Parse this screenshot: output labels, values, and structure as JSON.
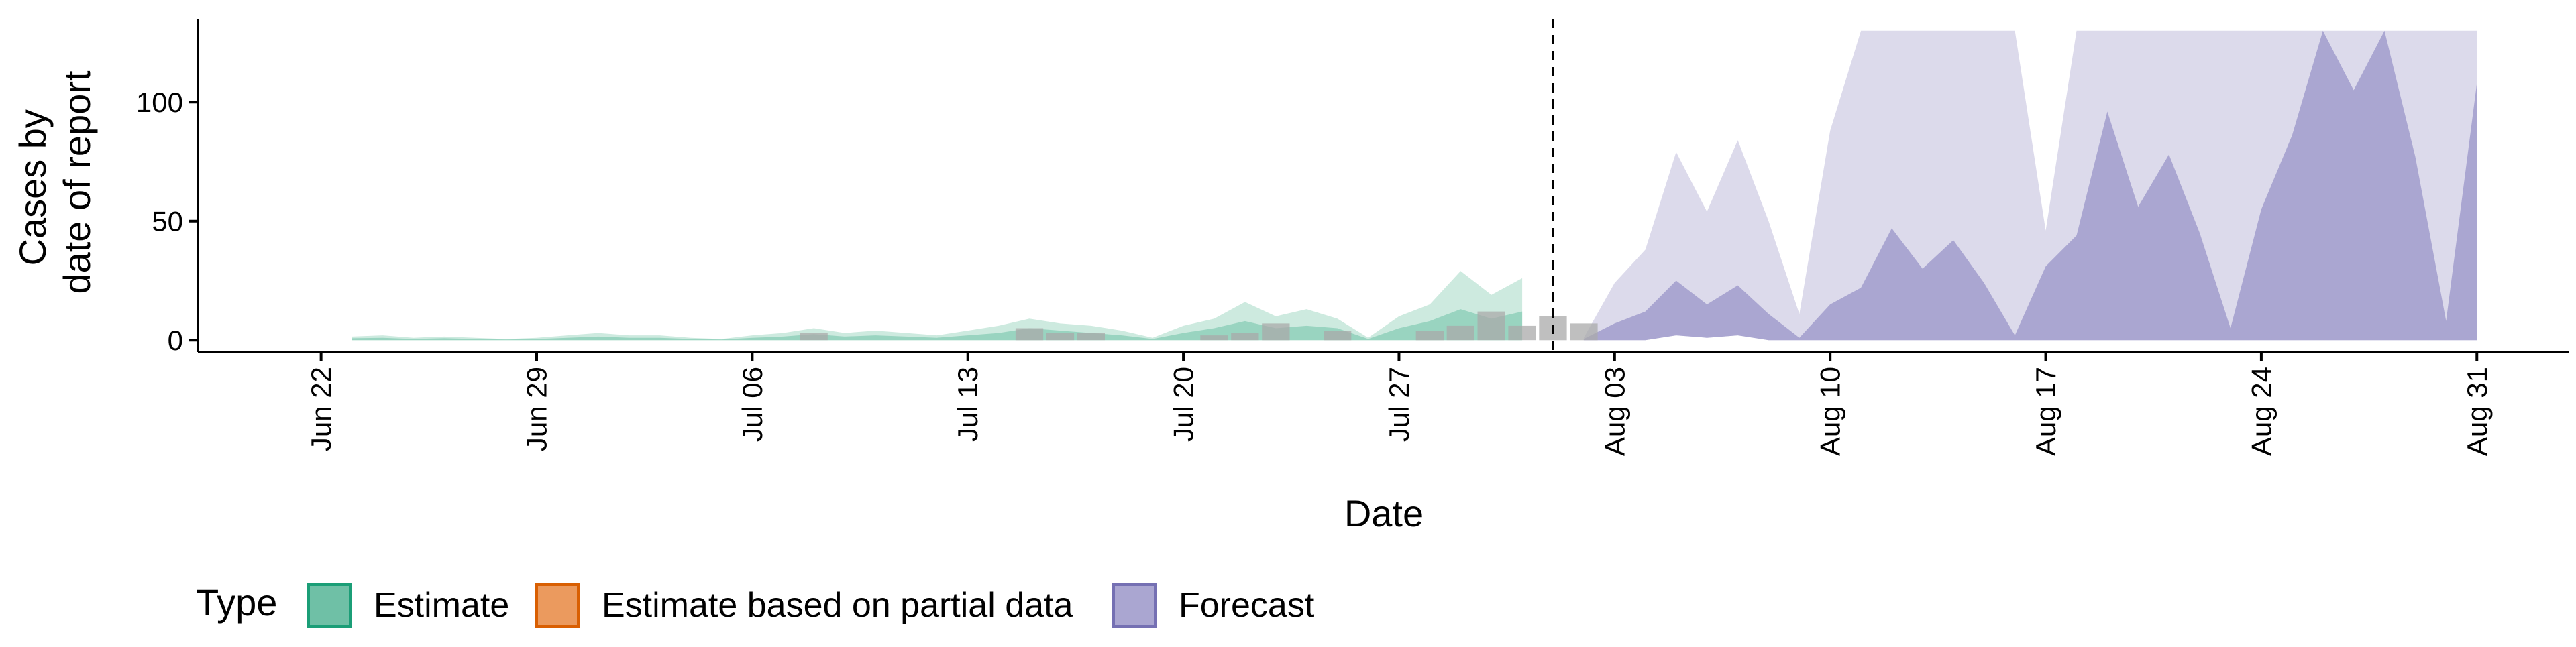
{
  "chart_data": {
    "type": "area",
    "xlabel": "Date",
    "ylabel_lines": [
      "Cases by",
      "date of report"
    ],
    "ylim": [
      -5,
      135
    ],
    "y_ticks": [
      0,
      50,
      100
    ],
    "x_range": [
      "2020-06-18",
      "2020-09-03"
    ],
    "x_ticks": [
      {
        "date": "2020-06-22",
        "label": "Jun 22"
      },
      {
        "date": "2020-06-29",
        "label": "Jun 29"
      },
      {
        "date": "2020-07-06",
        "label": "Jul 06"
      },
      {
        "date": "2020-07-13",
        "label": "Jul 13"
      },
      {
        "date": "2020-07-20",
        "label": "Jul 20"
      },
      {
        "date": "2020-07-27",
        "label": "Jul 27"
      },
      {
        "date": "2020-08-03",
        "label": "Aug 03"
      },
      {
        "date": "2020-08-10",
        "label": "Aug 10"
      },
      {
        "date": "2020-08-17",
        "label": "Aug 17"
      },
      {
        "date": "2020-08-24",
        "label": "Aug 24"
      },
      {
        "date": "2020-08-31",
        "label": "Aug 31"
      }
    ],
    "forecast_start": "2020-08-01",
    "legend": {
      "title": "Type",
      "position": "bottom",
      "items": [
        {
          "label": "Estimate",
          "fill": "#6fc0a6",
          "stroke": "#1b9e77"
        },
        {
          "label": "Estimate based on partial data",
          "fill": "#eb9a5e",
          "stroke": "#d95f02"
        },
        {
          "label": "Forecast",
          "fill": "#aaa6d1",
          "stroke": "#7570b3"
        }
      ]
    },
    "colors": {
      "estimate_outer": "#cdeadf",
      "estimate_inner": "#99d4c0",
      "forecast_outer": "#dcdaeb",
      "forecast_inner": "#aaa6d1",
      "observed_bars": "#a9a9a9",
      "forecast_line": "#000000"
    },
    "observed": [
      {
        "date": "2020-07-08",
        "value": 3
      },
      {
        "date": "2020-07-15",
        "value": 5
      },
      {
        "date": "2020-07-16",
        "value": 3
      },
      {
        "date": "2020-07-17",
        "value": 3
      },
      {
        "date": "2020-07-21",
        "value": 2
      },
      {
        "date": "2020-07-22",
        "value": 3
      },
      {
        "date": "2020-07-23",
        "value": 7
      },
      {
        "date": "2020-07-25",
        "value": 4
      },
      {
        "date": "2020-07-28",
        "value": 4
      },
      {
        "date": "2020-07-29",
        "value": 6
      },
      {
        "date": "2020-07-30",
        "value": 12
      },
      {
        "date": "2020-07-31",
        "value": 6
      },
      {
        "date": "2020-08-01",
        "value": 10
      },
      {
        "date": "2020-08-02",
        "value": 7
      }
    ],
    "estimate": [
      {
        "date": "2020-06-23",
        "lower": 0,
        "upper": 1.5,
        "inner_upper": 0.8
      },
      {
        "date": "2020-06-24",
        "lower": 0,
        "upper": 2,
        "inner_upper": 1
      },
      {
        "date": "2020-06-25",
        "lower": 0,
        "upper": 1,
        "inner_upper": 0.5
      },
      {
        "date": "2020-06-26",
        "lower": 0,
        "upper": 1.5,
        "inner_upper": 0.8
      },
      {
        "date": "2020-06-27",
        "lower": 0,
        "upper": 1,
        "inner_upper": 0.5
      },
      {
        "date": "2020-06-28",
        "lower": 0,
        "upper": 0.5,
        "inner_upper": 0.3
      },
      {
        "date": "2020-06-29",
        "lower": 0,
        "upper": 1,
        "inner_upper": 0.5
      },
      {
        "date": "2020-06-30",
        "lower": 0,
        "upper": 2,
        "inner_upper": 1
      },
      {
        "date": "2020-07-01",
        "lower": 0,
        "upper": 3,
        "inner_upper": 1.5
      },
      {
        "date": "2020-07-02",
        "lower": 0,
        "upper": 2,
        "inner_upper": 1
      },
      {
        "date": "2020-07-03",
        "lower": 0,
        "upper": 2,
        "inner_upper": 1
      },
      {
        "date": "2020-07-04",
        "lower": 0,
        "upper": 1,
        "inner_upper": 0.5
      },
      {
        "date": "2020-07-05",
        "lower": 0,
        "upper": 0.5,
        "inner_upper": 0.3
      },
      {
        "date": "2020-07-06",
        "lower": 0,
        "upper": 2,
        "inner_upper": 1
      },
      {
        "date": "2020-07-07",
        "lower": 0,
        "upper": 3,
        "inner_upper": 1.5
      },
      {
        "date": "2020-07-08",
        "lower": 0,
        "upper": 5,
        "inner_upper": 2.5
      },
      {
        "date": "2020-07-09",
        "lower": 0,
        "upper": 3,
        "inner_upper": 1.5
      },
      {
        "date": "2020-07-10",
        "lower": 0,
        "upper": 4,
        "inner_upper": 2
      },
      {
        "date": "2020-07-11",
        "lower": 0,
        "upper": 3,
        "inner_upper": 1.5
      },
      {
        "date": "2020-07-12",
        "lower": 0,
        "upper": 2,
        "inner_upper": 1
      },
      {
        "date": "2020-07-13",
        "lower": 0,
        "upper": 4,
        "inner_upper": 2
      },
      {
        "date": "2020-07-14",
        "lower": 0,
        "upper": 6,
        "inner_upper": 3
      },
      {
        "date": "2020-07-15",
        "lower": 0,
        "upper": 9,
        "inner_upper": 5
      },
      {
        "date": "2020-07-16",
        "lower": 0,
        "upper": 7,
        "inner_upper": 4
      },
      {
        "date": "2020-07-17",
        "lower": 0,
        "upper": 6,
        "inner_upper": 3
      },
      {
        "date": "2020-07-18",
        "lower": 0,
        "upper": 4,
        "inner_upper": 2
      },
      {
        "date": "2020-07-19",
        "lower": 0,
        "upper": 1,
        "inner_upper": 0.5
      },
      {
        "date": "2020-07-20",
        "lower": 0,
        "upper": 6,
        "inner_upper": 3
      },
      {
        "date": "2020-07-21",
        "lower": 0,
        "upper": 9,
        "inner_upper": 5
      },
      {
        "date": "2020-07-22",
        "lower": 0,
        "upper": 16,
        "inner_upper": 8
      },
      {
        "date": "2020-07-23",
        "lower": 0,
        "upper": 10,
        "inner_upper": 5
      },
      {
        "date": "2020-07-24",
        "lower": 0,
        "upper": 13,
        "inner_upper": 6
      },
      {
        "date": "2020-07-25",
        "lower": 0,
        "upper": 9,
        "inner_upper": 5
      },
      {
        "date": "2020-07-26",
        "lower": 0,
        "upper": 1,
        "inner_upper": 0.5
      },
      {
        "date": "2020-07-27",
        "lower": 0,
        "upper": 10,
        "inner_upper": 5
      },
      {
        "date": "2020-07-28",
        "lower": 0,
        "upper": 15,
        "inner_upper": 8
      },
      {
        "date": "2020-07-29",
        "lower": 0,
        "upper": 29,
        "inner_upper": 13
      },
      {
        "date": "2020-07-30",
        "lower": 0,
        "upper": 19,
        "inner_upper": 9
      },
      {
        "date": "2020-07-31",
        "lower": 0,
        "upper": 26,
        "inner_upper": 12
      }
    ],
    "forecast": [
      {
        "date": "2020-08-02",
        "lower": 0,
        "upper": 1,
        "inner_upper": 0.5
      },
      {
        "date": "2020-08-03",
        "lower": 0,
        "upper": 24,
        "inner_upper": 7
      },
      {
        "date": "2020-08-04",
        "lower": 0,
        "upper": 38,
        "inner_upper": 12
      },
      {
        "date": "2020-08-05",
        "lower": 2,
        "upper": 79,
        "inner_upper": 25
      },
      {
        "date": "2020-08-06",
        "lower": 1,
        "upper": 54,
        "inner_upper": 15
      },
      {
        "date": "2020-08-07",
        "lower": 2,
        "upper": 84,
        "inner_upper": 23
      },
      {
        "date": "2020-08-08",
        "lower": 0,
        "upper": 50,
        "inner_upper": 11
      },
      {
        "date": "2020-08-09",
        "lower": 0,
        "upper": 11,
        "inner_upper": 1
      },
      {
        "date": "2020-08-10",
        "lower": 0,
        "upper": 88,
        "inner_upper": 15
      },
      {
        "date": "2020-08-11",
        "lower": 0,
        "upper": 130,
        "inner_upper": 22
      },
      {
        "date": "2020-08-12",
        "lower": 0,
        "upper": 130,
        "inner_upper": 47
      },
      {
        "date": "2020-08-13",
        "lower": 0,
        "upper": 130,
        "inner_upper": 30
      },
      {
        "date": "2020-08-14",
        "lower": 0,
        "upper": 130,
        "inner_upper": 42
      },
      {
        "date": "2020-08-15",
        "lower": 0,
        "upper": 130,
        "inner_upper": 24
      },
      {
        "date": "2020-08-16",
        "lower": 0,
        "upper": 130,
        "inner_upper": 2
      },
      {
        "date": "2020-08-17",
        "lower": 0,
        "upper": 46,
        "inner_upper": 31
      },
      {
        "date": "2020-08-18",
        "lower": 0,
        "upper": 130,
        "inner_upper": 44
      },
      {
        "date": "2020-08-19",
        "lower": 0,
        "upper": 130,
        "inner_upper": 96
      },
      {
        "date": "2020-08-20",
        "lower": 0,
        "upper": 130,
        "inner_upper": 56
      },
      {
        "date": "2020-08-21",
        "lower": 0,
        "upper": 130,
        "inner_upper": 78
      },
      {
        "date": "2020-08-22",
        "lower": 0,
        "upper": 130,
        "inner_upper": 45
      },
      {
        "date": "2020-08-23",
        "lower": 0,
        "upper": 130,
        "inner_upper": 5
      },
      {
        "date": "2020-08-24",
        "lower": 0,
        "upper": 130,
        "inner_upper": 55
      },
      {
        "date": "2020-08-25",
        "lower": 0,
        "upper": 130,
        "inner_upper": 86
      },
      {
        "date": "2020-08-26",
        "lower": 0,
        "upper": 130,
        "inner_upper": 130
      },
      {
        "date": "2020-08-27",
        "lower": 0,
        "upper": 130,
        "inner_upper": 105
      },
      {
        "date": "2020-08-28",
        "lower": 0,
        "upper": 130,
        "inner_upper": 130
      },
      {
        "date": "2020-08-29",
        "lower": 0,
        "upper": 130,
        "inner_upper": 77
      },
      {
        "date": "2020-08-30",
        "lower": 0,
        "upper": 130,
        "inner_upper": 8
      },
      {
        "date": "2020-08-31",
        "lower": 0,
        "upper": 130,
        "inner_upper": 108
      }
    ]
  }
}
